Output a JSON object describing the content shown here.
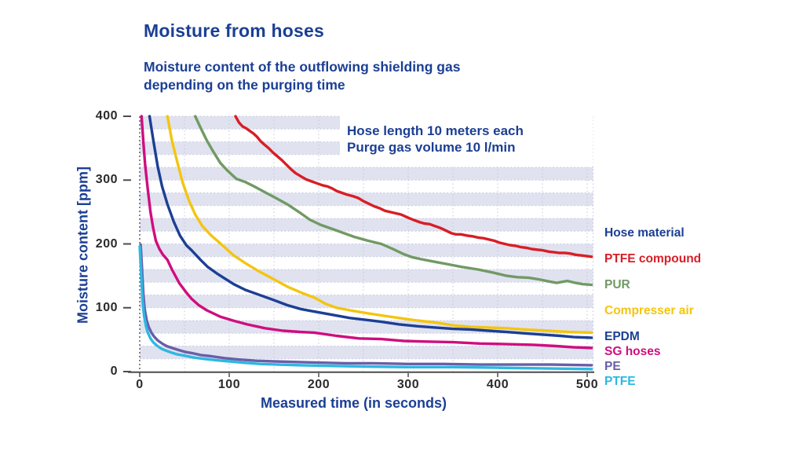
{
  "colors": {
    "heading": "#1b3f94",
    "tick_text": "#2d2a2b",
    "stripe": "#e0e2f0",
    "grid_dot": "#c3c7dc",
    "axis_line": "#4c4c4e",
    "background": "#ffffff"
  },
  "header": {
    "title": "Moisture from hoses",
    "subtitle_line1": "Moisture content of the outflowing shielding gas",
    "subtitle_line2": "depending on the purging time"
  },
  "annotation": {
    "line1": "Hose length 10 meters each",
    "line2": "Purge gas volume 10 l/min"
  },
  "legend": {
    "title": "Hose material",
    "items": [
      {
        "label": "PTFE compound",
        "color": "#d81e26"
      },
      {
        "label": "PUR",
        "color": "#719a64"
      },
      {
        "label": "Compresser air",
        "color": "#f3c50f"
      },
      {
        "label": "EPDM",
        "color": "#1c3f94"
      },
      {
        "label": "SG hoses",
        "color": "#d00d7e"
      },
      {
        "label": "PE",
        "color": "#6a5ea8"
      },
      {
        "label": "PTFE",
        "color": "#2db8e2"
      }
    ]
  },
  "axes": {
    "x_label": "Measured time (in seconds)",
    "y_label": "Moisture content [ppm]"
  },
  "chart_data": {
    "type": "line",
    "title": "Moisture from hoses",
    "subtitle": "Moisture content of the outflowing shielding gas depending on the purging time",
    "xlabel": "Measured time (in seconds)",
    "ylabel": "Moisture content [ppm]",
    "xlim": [
      0,
      500
    ],
    "ylim": [
      0,
      400
    ],
    "x_ticks": [
      0,
      100,
      200,
      300,
      400,
      500
    ],
    "y_ticks": [
      0,
      100,
      200,
      300,
      400
    ],
    "grid": "lavender horizontal bands every 20 ppm, dotted gridlines every 20 ppm and every 50 s, dashed y-axis at t=0",
    "legend_position": "right",
    "series": [
      {
        "name": "PTFE compound",
        "color": "#d81e26",
        "points": [
          [
            107,
            400
          ],
          [
            111,
            390
          ],
          [
            115,
            384
          ],
          [
            119,
            381
          ],
          [
            123,
            377
          ],
          [
            127,
            373
          ],
          [
            131,
            368
          ],
          [
            135,
            361
          ],
          [
            139,
            356
          ],
          [
            144,
            350
          ],
          [
            149,
            343
          ],
          [
            154,
            337
          ],
          [
            159,
            331
          ],
          [
            164,
            324
          ],
          [
            169,
            317
          ],
          [
            174,
            311
          ],
          [
            180,
            306
          ],
          [
            186,
            301
          ],
          [
            192,
            298
          ],
          [
            198,
            295
          ],
          [
            204,
            292
          ],
          [
            210,
            290
          ],
          [
            215,
            287
          ],
          [
            220,
            283
          ],
          [
            226,
            280
          ],
          [
            232,
            277
          ],
          [
            238,
            275
          ],
          [
            244,
            272
          ],
          [
            250,
            267
          ],
          [
            256,
            263
          ],
          [
            262,
            259
          ],
          [
            268,
            256
          ],
          [
            274,
            252
          ],
          [
            280,
            250
          ],
          [
            286,
            248
          ],
          [
            292,
            246
          ],
          [
            300,
            241
          ],
          [
            307,
            237
          ],
          [
            313,
            234
          ],
          [
            318,
            232
          ],
          [
            324,
            231
          ],
          [
            330,
            228
          ],
          [
            336,
            225
          ],
          [
            342,
            221
          ],
          [
            348,
            217
          ],
          [
            353,
            215
          ],
          [
            359,
            215
          ],
          [
            366,
            213
          ],
          [
            372,
            212
          ],
          [
            378,
            210
          ],
          [
            384,
            209
          ],
          [
            390,
            207
          ],
          [
            396,
            205
          ],
          [
            402,
            202
          ],
          [
            408,
            200
          ],
          [
            414,
            198
          ],
          [
            420,
            197
          ],
          [
            426,
            195
          ],
          [
            432,
            194
          ],
          [
            438,
            192
          ],
          [
            444,
            191
          ],
          [
            450,
            190
          ],
          [
            457,
            188
          ],
          [
            463,
            187
          ],
          [
            469,
            186
          ],
          [
            475,
            186
          ],
          [
            481,
            185
          ],
          [
            487,
            183
          ],
          [
            493,
            182
          ],
          [
            499,
            181
          ],
          [
            505,
            180
          ]
        ]
      },
      {
        "name": "PUR",
        "color": "#719a64",
        "points": [
          [
            62,
            400
          ],
          [
            68,
            382
          ],
          [
            75,
            362
          ],
          [
            82,
            345
          ],
          [
            90,
            327
          ],
          [
            98,
            315
          ],
          [
            108,
            302
          ],
          [
            118,
            297
          ],
          [
            128,
            290
          ],
          [
            140,
            281
          ],
          [
            152,
            272
          ],
          [
            165,
            262
          ],
          [
            178,
            250
          ],
          [
            190,
            238
          ],
          [
            202,
            230
          ],
          [
            214,
            224
          ],
          [
            226,
            218
          ],
          [
            240,
            211
          ],
          [
            255,
            205
          ],
          [
            270,
            200
          ],
          [
            283,
            192
          ],
          [
            295,
            184
          ],
          [
            305,
            179
          ],
          [
            315,
            176
          ],
          [
            330,
            172
          ],
          [
            345,
            168
          ],
          [
            360,
            164
          ],
          [
            378,
            160
          ],
          [
            395,
            155
          ],
          [
            410,
            150
          ],
          [
            422,
            148
          ],
          [
            435,
            147
          ],
          [
            448,
            144
          ],
          [
            458,
            141
          ],
          [
            466,
            139
          ],
          [
            478,
            142
          ],
          [
            487,
            139
          ],
          [
            495,
            137
          ],
          [
            505,
            136
          ]
        ]
      },
      {
        "name": "Compresser air",
        "color": "#f3c50f",
        "points": [
          [
            31,
            400
          ],
          [
            36,
            362
          ],
          [
            42,
            328
          ],
          [
            48,
            296
          ],
          [
            55,
            268
          ],
          [
            62,
            246
          ],
          [
            70,
            228
          ],
          [
            80,
            213
          ],
          [
            94,
            196
          ],
          [
            105,
            182
          ],
          [
            118,
            170
          ],
          [
            132,
            158
          ],
          [
            148,
            146
          ],
          [
            165,
            133
          ],
          [
            180,
            124
          ],
          [
            195,
            116
          ],
          [
            208,
            106
          ],
          [
            220,
            100
          ],
          [
            235,
            96
          ],
          [
            252,
            92
          ],
          [
            270,
            88
          ],
          [
            290,
            84
          ],
          [
            310,
            80
          ],
          [
            330,
            77
          ],
          [
            352,
            72
          ],
          [
            370,
            70
          ],
          [
            390,
            69
          ],
          [
            410,
            68
          ],
          [
            430,
            66
          ],
          [
            455,
            64
          ],
          [
            480,
            62
          ],
          [
            505,
            61
          ]
        ]
      },
      {
        "name": "EPDM",
        "color": "#1c3f94",
        "points": [
          [
            11,
            400
          ],
          [
            15,
            364
          ],
          [
            20,
            322
          ],
          [
            25,
            290
          ],
          [
            31,
            262
          ],
          [
            38,
            235
          ],
          [
            45,
            213
          ],
          [
            52,
            198
          ],
          [
            58,
            190
          ],
          [
            68,
            175
          ],
          [
            76,
            164
          ],
          [
            86,
            154
          ],
          [
            96,
            145
          ],
          [
            105,
            137
          ],
          [
            118,
            128
          ],
          [
            132,
            121
          ],
          [
            148,
            113
          ],
          [
            165,
            104
          ],
          [
            180,
            98
          ],
          [
            195,
            94
          ],
          [
            215,
            89
          ],
          [
            235,
            84
          ],
          [
            253,
            81
          ],
          [
            270,
            78
          ],
          [
            290,
            74
          ],
          [
            311,
            71
          ],
          [
            330,
            69
          ],
          [
            350,
            67
          ],
          [
            370,
            66
          ],
          [
            390,
            64
          ],
          [
            410,
            62
          ],
          [
            430,
            60
          ],
          [
            450,
            58
          ],
          [
            470,
            56
          ],
          [
            485,
            54
          ],
          [
            505,
            53
          ]
        ]
      },
      {
        "name": "SG hoses",
        "color": "#d00d7e",
        "points": [
          [
            2,
            400
          ],
          [
            4,
            360
          ],
          [
            6,
            325
          ],
          [
            9,
            285
          ],
          [
            12,
            250
          ],
          [
            15,
            225
          ],
          [
            18,
            205
          ],
          [
            22,
            192
          ],
          [
            26,
            183
          ],
          [
            31,
            175
          ],
          [
            36,
            160
          ],
          [
            44,
            139
          ],
          [
            52,
            124
          ],
          [
            58,
            114
          ],
          [
            66,
            104
          ],
          [
            75,
            96
          ],
          [
            90,
            86
          ],
          [
            104,
            80
          ],
          [
            120,
            74
          ],
          [
            140,
            68
          ],
          [
            160,
            64
          ],
          [
            180,
            62
          ],
          [
            195,
            61
          ],
          [
            220,
            56
          ],
          [
            245,
            52
          ],
          [
            270,
            51
          ],
          [
            295,
            48
          ],
          [
            320,
            47
          ],
          [
            350,
            46
          ],
          [
            380,
            44
          ],
          [
            410,
            43
          ],
          [
            440,
            42
          ],
          [
            465,
            40
          ],
          [
            485,
            38
          ],
          [
            505,
            37
          ]
        ]
      },
      {
        "name": "PE",
        "color": "#6a5ea8",
        "points": [
          [
            1,
            199
          ],
          [
            2,
            175
          ],
          [
            3,
            148
          ],
          [
            4,
            122
          ],
          [
            5,
            105
          ],
          [
            6,
            94
          ],
          [
            8,
            79
          ],
          [
            10,
            70
          ],
          [
            13,
            61
          ],
          [
            16,
            55
          ],
          [
            20,
            49
          ],
          [
            25,
            44
          ],
          [
            30,
            40
          ],
          [
            36,
            37
          ],
          [
            43,
            34
          ],
          [
            50,
            31
          ],
          [
            58,
            29
          ],
          [
            68,
            26
          ],
          [
            80,
            24
          ],
          [
            95,
            21
          ],
          [
            110,
            19
          ],
          [
            130,
            17
          ],
          [
            150,
            16
          ],
          [
            175,
            15
          ],
          [
            200,
            14
          ],
          [
            230,
            13
          ],
          [
            260,
            13
          ],
          [
            300,
            12
          ],
          [
            340,
            12
          ],
          [
            380,
            11
          ],
          [
            420,
            11
          ],
          [
            460,
            11
          ],
          [
            505,
            10
          ]
        ]
      },
      {
        "name": "PTFE",
        "color": "#2db8e2",
        "points": [
          [
            0,
            196
          ],
          [
            1,
            170
          ],
          [
            2,
            142
          ],
          [
            3,
            116
          ],
          [
            4,
            98
          ],
          [
            5,
            86
          ],
          [
            7,
            71
          ],
          [
            9,
            61
          ],
          [
            12,
            52
          ],
          [
            15,
            46
          ],
          [
            19,
            41
          ],
          [
            24,
            36
          ],
          [
            29,
            33
          ],
          [
            35,
            30
          ],
          [
            42,
            27
          ],
          [
            50,
            25
          ],
          [
            60,
            22
          ],
          [
            72,
            20
          ],
          [
            85,
            18
          ],
          [
            100,
            16
          ],
          [
            115,
            14
          ],
          [
            135,
            12
          ],
          [
            155,
            11
          ],
          [
            180,
            10
          ],
          [
            210,
            9
          ],
          [
            250,
            8
          ],
          [
            300,
            7
          ],
          [
            350,
            7
          ],
          [
            400,
            6
          ],
          [
            450,
            5
          ],
          [
            505,
            4
          ]
        ]
      }
    ]
  }
}
